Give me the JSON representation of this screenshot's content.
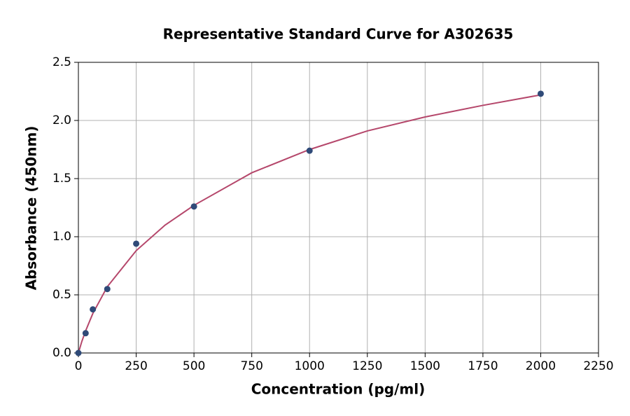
{
  "chart_data": {
    "type": "scatter",
    "title": "Representative Standard Curve for A302635",
    "x_label": "Concentration (pg/ml)",
    "y_label": "Absorbance (450nm)",
    "series": [
      {
        "color": "#2f4a78",
        "x": [
          0,
          31.25,
          62.5,
          125,
          250,
          500,
          1000,
          2000
        ],
        "values": [
          0.0,
          0.17,
          0.375,
          0.55,
          0.94,
          1.26,
          1.74,
          2.23
        ]
      }
    ],
    "fit": {
      "color": "#b5476b",
      "x": [
        0,
        15,
        31.25,
        62.5,
        125,
        250,
        375,
        500,
        750,
        1000,
        1250,
        1500,
        1750,
        2000
      ],
      "values": [
        0.0,
        0.1,
        0.19,
        0.34,
        0.57,
        0.88,
        1.1,
        1.27,
        1.55,
        1.75,
        1.91,
        2.03,
        2.13,
        2.22
      ]
    },
    "xlim": [
      0,
      2250
    ],
    "xticks": [
      0,
      250,
      500,
      750,
      1000,
      1250,
      1500,
      1750,
      2000,
      2250
    ],
    "ylim": [
      0,
      2.5
    ],
    "yticks": [
      {
        "value": 0,
        "label": "0.0"
      },
      0.5,
      {
        "value": 1,
        "label": "1.0"
      },
      1.5,
      {
        "value": 2,
        "label": "2.0"
      },
      2.5
    ],
    "grid": true
  }
}
